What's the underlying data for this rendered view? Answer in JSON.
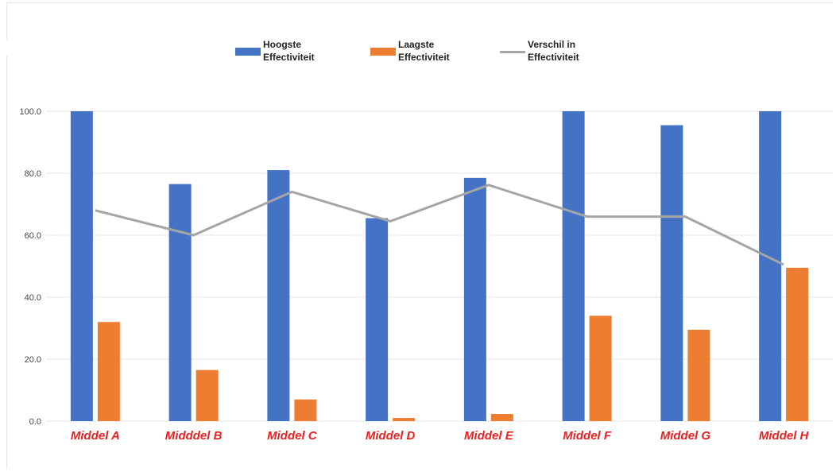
{
  "chart_data": {
    "type": "bar",
    "categories": [
      "Middel A",
      "Midddel B",
      "Middel C",
      "Middel D",
      "Middel E",
      "Middel F",
      "Middel G",
      "Middel H"
    ],
    "series": [
      {
        "name": "Hoogste\nEffectiviteit",
        "kind": "bar",
        "color": "#4472c4",
        "values": [
          100.0,
          76.5,
          81.0,
          65.5,
          78.5,
          100.0,
          95.5,
          100.0
        ]
      },
      {
        "name": "Laagste\nEffectiviteit",
        "kind": "bar",
        "color": "#ed7d31",
        "values": [
          32.0,
          16.5,
          7.0,
          1.0,
          2.3,
          34.0,
          29.5,
          49.5
        ]
      },
      {
        "name": "Verschil in\nEffectiviteit",
        "kind": "line",
        "color": "#a5a5a5",
        "values": [
          68.0,
          60.0,
          74.0,
          64.5,
          76.2,
          66.0,
          66.0,
          50.5
        ]
      }
    ],
    "y_ticks": [
      "0.0",
      "20.0",
      "40.0",
      "60.0",
      "80.0",
      "100.0"
    ],
    "ylim": [
      0,
      100
    ],
    "grid": true,
    "legend_position": "top-center",
    "title": "",
    "xlabel": "",
    "ylabel": ""
  }
}
